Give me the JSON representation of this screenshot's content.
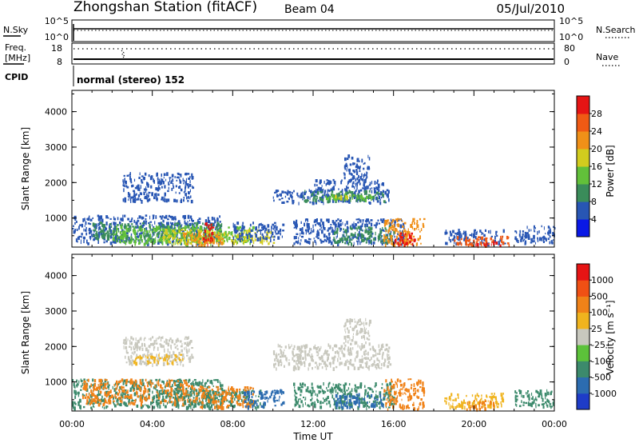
{
  "header": {
    "title": "Zhongshan Station (fitACF)",
    "beam": "Beam 04",
    "date": "05/Jul/2010"
  },
  "top_panels": {
    "nsky": {
      "label": "N.Sky",
      "ticks": [
        "10^5",
        "10^0"
      ]
    },
    "nsearch": {
      "label": "N.Search",
      "ticks": [
        "10^5",
        "10^0"
      ]
    },
    "freq": {
      "label_top": "Freq.",
      "label_bottom": "[MHz]",
      "ticks": [
        "18",
        "8"
      ]
    },
    "nave": {
      "label": "Nave",
      "ticks": [
        "80",
        "0"
      ]
    },
    "cpid": {
      "label": "CPID",
      "value": "normal (stereo) 152"
    }
  },
  "colorbars": {
    "power": {
      "label": "Power [dB]",
      "ticks": [
        "28",
        "24",
        "20",
        "16",
        "12",
        "8",
        "4"
      ],
      "colors": [
        "#0a18e6",
        "#2856b4",
        "#3a8c5a",
        "#62c03a",
        "#d2cc1e",
        "#f09018",
        "#f05a14",
        "#e61414"
      ]
    },
    "velocity": {
      "label": "Velocity [m s⁻¹]",
      "ticks": [
        "1000",
        "500",
        "100",
        "25",
        "-25",
        "-100",
        "-500",
        "-1000"
      ],
      "colors": [
        "#1e3cc8",
        "#2c6cb0",
        "#3c8a6c",
        "#5cc23a",
        "#c8c8be",
        "#f0b41e",
        "#f08218",
        "#f05014",
        "#e61414"
      ]
    }
  },
  "chart_data": [
    {
      "type": "heatmap",
      "name": "power-panel",
      "ylabel": "Slant Range [km]",
      "y_ticks": [
        "1000",
        "2000",
        "3000",
        "4000"
      ],
      "ylim": [
        180,
        4600
      ],
      "xlim": [
        0,
        24
      ],
      "regions": [
        {
          "x": [
            0,
            7.5
          ],
          "y": [
            300,
            1100
          ],
          "color": "#2856b4"
        },
        {
          "x": [
            1.0,
            7.5
          ],
          "y": [
            400,
            900
          ],
          "color": "#3a8c5a"
        },
        {
          "x": [
            2.0,
            9.0
          ],
          "y": [
            300,
            800
          ],
          "color": "#62c03a"
        },
        {
          "x": [
            4.5,
            10.0
          ],
          "y": [
            300,
            700
          ],
          "color": "#d2cc1e"
        },
        {
          "x": [
            5.5,
            7.5
          ],
          "y": [
            250,
            600
          ],
          "color": "#f09018"
        },
        {
          "x": [
            6.5,
            7.0
          ],
          "y": [
            250,
            900
          ],
          "color": "#e61414"
        },
        {
          "x": [
            8.0,
            10.5
          ],
          "y": [
            400,
            900
          ],
          "color": "#2856b4"
        },
        {
          "x": [
            2.5,
            6.0
          ],
          "y": [
            1500,
            2300
          ],
          "color": "#2856b4"
        },
        {
          "x": [
            10.0,
            15.8
          ],
          "y": [
            1450,
            1850
          ],
          "color": "#2856b4"
        },
        {
          "x": [
            11.5,
            15.5
          ],
          "y": [
            1500,
            1800
          ],
          "color": "#3a8c5a"
        },
        {
          "x": [
            12.5,
            15.0
          ],
          "y": [
            1550,
            1700
          ],
          "color": "#62c03a"
        },
        {
          "x": [
            13.0,
            14.0
          ],
          "y": [
            1600,
            1680
          ],
          "color": "#d2cc1e"
        },
        {
          "x": [
            12.0,
            15.5
          ],
          "y": [
            1850,
            2100
          ],
          "color": "#2856b4"
        },
        {
          "x": [
            13.5,
            14.8
          ],
          "y": [
            2100,
            2800
          ],
          "color": "#2856b4"
        },
        {
          "x": [
            11.0,
            16.5
          ],
          "y": [
            300,
            1000
          ],
          "color": "#2856b4"
        },
        {
          "x": [
            13.0,
            16.0
          ],
          "y": [
            300,
            800
          ],
          "color": "#3a8c5a"
        },
        {
          "x": [
            15.5,
            17.5
          ],
          "y": [
            250,
            1000
          ],
          "color": "#f09018"
        },
        {
          "x": [
            16.0,
            17.0
          ],
          "y": [
            250,
            600
          ],
          "color": "#e61414"
        },
        {
          "x": [
            18.5,
            21.5
          ],
          "y": [
            300,
            700
          ],
          "color": "#2856b4"
        },
        {
          "x": [
            19.0,
            21.8
          ],
          "y": [
            250,
            500
          ],
          "color": "#f05a14"
        },
        {
          "x": [
            20.0,
            21.5
          ],
          "y": [
            250,
            350
          ],
          "color": "#e61414"
        },
        {
          "x": [
            22.0,
            24.0
          ],
          "y": [
            300,
            800
          ],
          "color": "#2856b4"
        }
      ]
    },
    {
      "type": "heatmap",
      "name": "velocity-panel",
      "ylabel": "Slant Range [km]",
      "xlabel": "Time UT",
      "x_ticks": [
        "00:00",
        "04:00",
        "08:00",
        "12:00",
        "16:00",
        "20:00",
        "00:00"
      ],
      "y_ticks": [
        "1000",
        "2000",
        "3000",
        "4000"
      ],
      "ylim": [
        180,
        4600
      ],
      "xlim": [
        0,
        24
      ],
      "regions": [
        {
          "x": [
            0,
            7.5
          ],
          "y": [
            300,
            1100
          ],
          "color": "#3c8a6c"
        },
        {
          "x": [
            0.5,
            6.0
          ],
          "y": [
            400,
            1100
          ],
          "color": "#f08218"
        },
        {
          "x": [
            5.0,
            9.5
          ],
          "y": [
            300,
            800
          ],
          "color": "#3c8a6c"
        },
        {
          "x": [
            6.0,
            9.0
          ],
          "y": [
            300,
            900
          ],
          "color": "#f08218"
        },
        {
          "x": [
            8.5,
            10.5
          ],
          "y": [
            300,
            800
          ],
          "color": "#2c6cb0"
        },
        {
          "x": [
            2.5,
            6.0
          ],
          "y": [
            1500,
            2300
          ],
          "color": "#c8c8be"
        },
        {
          "x": [
            3.0,
            5.5
          ],
          "y": [
            1550,
            1800
          ],
          "color": "#f0b41e"
        },
        {
          "x": [
            10.0,
            15.8
          ],
          "y": [
            1400,
            2100
          ],
          "color": "#c8c8be"
        },
        {
          "x": [
            13.5,
            14.8
          ],
          "y": [
            2100,
            2800
          ],
          "color": "#c8c8be"
        },
        {
          "x": [
            11.0,
            16.0
          ],
          "y": [
            300,
            1000
          ],
          "color": "#3c8a6c"
        },
        {
          "x": [
            13.0,
            15.5
          ],
          "y": [
            300,
            700
          ],
          "color": "#2c6cb0"
        },
        {
          "x": [
            15.5,
            17.5
          ],
          "y": [
            250,
            1100
          ],
          "color": "#f08218"
        },
        {
          "x": [
            18.5,
            21.5
          ],
          "y": [
            300,
            700
          ],
          "color": "#f0b41e"
        },
        {
          "x": [
            19.5,
            21.0
          ],
          "y": [
            250,
            500
          ],
          "color": "#f08218"
        },
        {
          "x": [
            22.0,
            24.0
          ],
          "y": [
            300,
            800
          ],
          "color": "#3c8a6c"
        }
      ]
    }
  ]
}
